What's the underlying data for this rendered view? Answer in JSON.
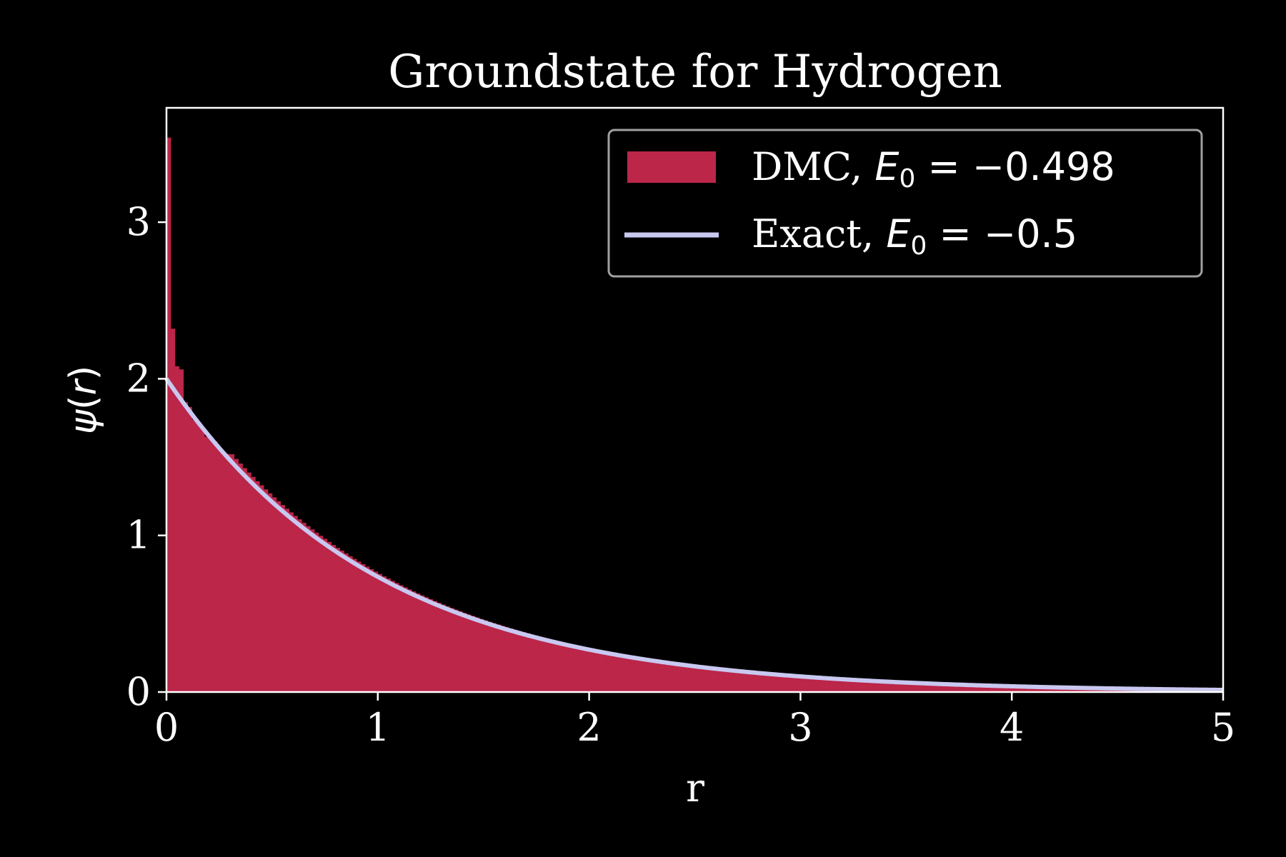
{
  "colors": {
    "background": "#000000",
    "histogram": "#bb2649",
    "exact_line": "#c8c8f0",
    "axes": "#ffffff",
    "legend_border": "#a0a0a0"
  },
  "chart_data": {
    "type": "bar",
    "title": "Groundstate for Hydrogen",
    "xlabel": "r",
    "ylabel_symbol": "ψ",
    "ylabel_arg": "r",
    "xlim": [
      0,
      5
    ],
    "ylim": [
      0,
      3.73
    ],
    "xticks": [
      0,
      1,
      2,
      3,
      4,
      5
    ],
    "yticks": [
      0,
      1,
      2,
      3
    ],
    "grid": false,
    "legend_position": "top-right",
    "histogram": {
      "label_text": "DMC, ",
      "label_E": "E",
      "label_sub": "0",
      "label_eq": " = −0.498",
      "energy": -0.498,
      "bin_width": 0.02,
      "spike_heights": [
        3.54,
        2.32,
        2.08,
        2.06,
        1.85,
        1.82,
        1.74,
        1.72,
        1.68,
        1.63,
        1.62,
        1.6,
        1.55,
        1.53,
        1.52
      ],
      "baseline_curve": "2*exp(-r)*1.035"
    },
    "exact": {
      "label_text": "Exact, ",
      "label_E": "E",
      "label_sub": "0",
      "label_eq": " = −0.5",
      "energy": -0.5,
      "function": "2*exp(-r)"
    }
  }
}
